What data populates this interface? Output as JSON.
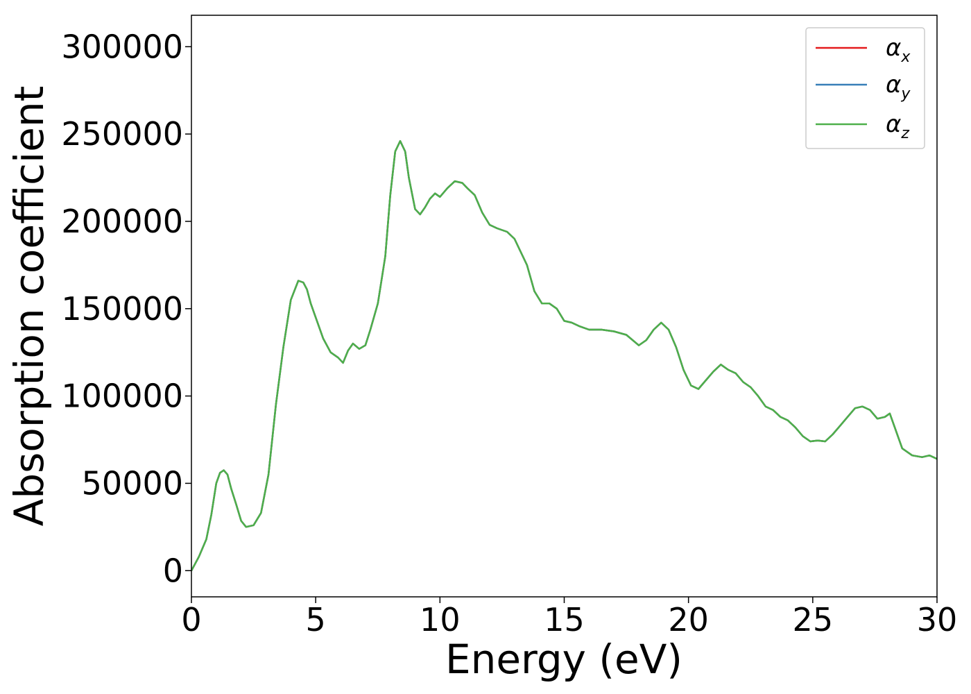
{
  "chart_data": {
    "type": "line",
    "title": "",
    "xlabel": "Energy (eV)",
    "ylabel": "Absorption coefficient",
    "xlim": [
      0,
      30
    ],
    "ylim": [
      -15000,
      318000
    ],
    "xticks": [
      0,
      5,
      10,
      15,
      20,
      25,
      30
    ],
    "xtick_labels": [
      "0",
      "5",
      "10",
      "15",
      "20",
      "25",
      "30"
    ],
    "yticks": [
      0,
      50000,
      100000,
      150000,
      200000,
      250000,
      300000
    ],
    "ytick_labels": [
      "0",
      "50000",
      "100000",
      "150000",
      "200000",
      "250000",
      "300000"
    ],
    "grid": false,
    "legend_position": "top-right",
    "legend": [
      {
        "symbol": "α",
        "subscript": "x",
        "color": "#e41a1c"
      },
      {
        "symbol": "α",
        "subscript": "y",
        "color": "#377eb8"
      },
      {
        "symbol": "α",
        "subscript": "z",
        "color": "#4daf4a"
      }
    ],
    "x": [
      0,
      0.3,
      0.6,
      0.8,
      1.0,
      1.15,
      1.3,
      1.45,
      1.6,
      1.8,
      2.0,
      2.2,
      2.5,
      2.8,
      3.1,
      3.4,
      3.7,
      4.0,
      4.3,
      4.5,
      4.65,
      4.8,
      5.0,
      5.3,
      5.6,
      5.9,
      6.1,
      6.3,
      6.5,
      6.75,
      7.0,
      7.2,
      7.5,
      7.8,
      8.0,
      8.2,
      8.4,
      8.6,
      8.75,
      9.0,
      9.2,
      9.4,
      9.6,
      9.8,
      10.0,
      10.3,
      10.6,
      10.9,
      11.1,
      11.4,
      11.7,
      12.0,
      12.3,
      12.7,
      13.0,
      13.5,
      13.8,
      14.1,
      14.4,
      14.7,
      15.0,
      15.3,
      15.6,
      16.0,
      16.5,
      17.0,
      17.5,
      18.0,
      18.3,
      18.6,
      18.9,
      19.2,
      19.5,
      19.8,
      20.1,
      20.4,
      20.7,
      21.0,
      21.3,
      21.6,
      21.9,
      22.2,
      22.5,
      22.8,
      23.1,
      23.4,
      23.7,
      24.0,
      24.3,
      24.6,
      24.9,
      25.2,
      25.5,
      25.8,
      26.1,
      26.4,
      26.7,
      27.0,
      27.3,
      27.6,
      27.9,
      28.1,
      28.3,
      28.6,
      29.0,
      29.4,
      29.7,
      30.0
    ],
    "series": [
      {
        "name": "α_x",
        "color": "#e41a1c",
        "values": [
          0,
          8000,
          18000,
          32000,
          50000,
          56000,
          57500,
          55000,
          47000,
          38000,
          28500,
          25000,
          26000,
          33000,
          55000,
          95000,
          128000,
          155000,
          166000,
          165000,
          161000,
          153000,
          145000,
          133000,
          125000,
          122000,
          119000,
          126000,
          130000,
          127000,
          129000,
          138000,
          153000,
          180000,
          215000,
          240000,
          246000,
          240000,
          225000,
          207000,
          204000,
          208000,
          213000,
          216000,
          214000,
          219000,
          223000,
          222000,
          219000,
          215000,
          205000,
          198000,
          196000,
          194000,
          190000,
          175000,
          160000,
          153000,
          153000,
          150000,
          143000,
          142000,
          140000,
          138000,
          138000,
          137000,
          135000,
          129000,
          132000,
          138000,
          142000,
          138000,
          128000,
          115000,
          106000,
          104000,
          109000,
          114000,
          118000,
          115000,
          113000,
          108000,
          105000,
          100000,
          94000,
          92000,
          88000,
          86000,
          82000,
          77000,
          74000,
          74500,
          74000,
          78000,
          83000,
          88000,
          93000,
          94000,
          92000,
          87000,
          88000,
          90000,
          82000,
          70000,
          66000,
          65000,
          66000,
          64000
        ]
      },
      {
        "name": "α_y",
        "color": "#377eb8",
        "values": [
          0,
          8000,
          18000,
          32000,
          50000,
          56000,
          57500,
          55000,
          47000,
          38000,
          28500,
          25000,
          26000,
          33000,
          55000,
          95000,
          128000,
          155000,
          166000,
          165000,
          161000,
          153000,
          145000,
          133000,
          125000,
          122000,
          119000,
          126000,
          130000,
          127000,
          129000,
          138000,
          153000,
          180000,
          215000,
          240000,
          246000,
          240000,
          225000,
          207000,
          204000,
          208000,
          213000,
          216000,
          214000,
          219000,
          223000,
          222000,
          219000,
          215000,
          205000,
          198000,
          196000,
          194000,
          190000,
          175000,
          160000,
          153000,
          153000,
          150000,
          143000,
          142000,
          140000,
          138000,
          138000,
          137000,
          135000,
          129000,
          132000,
          138000,
          142000,
          138000,
          128000,
          115000,
          106000,
          104000,
          109000,
          114000,
          118000,
          115000,
          113000,
          108000,
          105000,
          100000,
          94000,
          92000,
          88000,
          86000,
          82000,
          77000,
          74000,
          74500,
          74000,
          78000,
          83000,
          88000,
          93000,
          94000,
          92000,
          87000,
          88000,
          90000,
          82000,
          70000,
          66000,
          65000,
          66000,
          64000
        ]
      },
      {
        "name": "α_z",
        "color": "#4daf4a",
        "values": [
          0,
          8000,
          18000,
          32000,
          50000,
          56000,
          57500,
          55000,
          47000,
          38000,
          28500,
          25000,
          26000,
          33000,
          55000,
          95000,
          128000,
          155000,
          166000,
          165000,
          161000,
          153000,
          145000,
          133000,
          125000,
          122000,
          119000,
          126000,
          130000,
          127000,
          129000,
          138000,
          153000,
          180000,
          215000,
          240000,
          246000,
          240000,
          225000,
          207000,
          204000,
          208000,
          213000,
          216000,
          214000,
          219000,
          223000,
          222000,
          219000,
          215000,
          205000,
          198000,
          196000,
          194000,
          190000,
          175000,
          160000,
          153000,
          153000,
          150000,
          143000,
          142000,
          140000,
          138000,
          138000,
          137000,
          135000,
          129000,
          132000,
          138000,
          142000,
          138000,
          128000,
          115000,
          106000,
          104000,
          109000,
          114000,
          118000,
          115000,
          113000,
          108000,
          105000,
          100000,
          94000,
          92000,
          88000,
          86000,
          82000,
          77000,
          74000,
          74500,
          74000,
          78000,
          83000,
          88000,
          93000,
          94000,
          92000,
          87000,
          88000,
          90000,
          82000,
          70000,
          66000,
          65000,
          66000,
          64000
        ]
      }
    ]
  }
}
